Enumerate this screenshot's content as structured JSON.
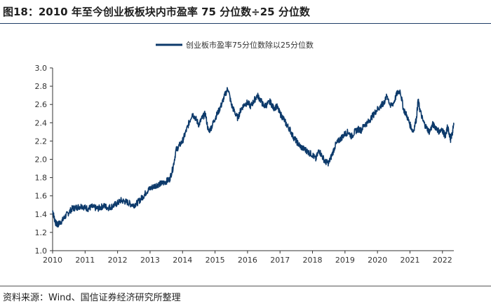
{
  "header": {
    "title": "图18：2010 年至今创业板板块内市盈率 75 分位数÷25 分位数"
  },
  "footer": {
    "source": "资料来源：Wind、国信证券经济研究所整理"
  },
  "chart_data": {
    "type": "line",
    "title": "图18：2010 年至今创业板板块内市盈率 75 分位数÷25 分位数",
    "xlabel": "",
    "ylabel": "",
    "x_range": [
      2010.0,
      2022.35
    ],
    "ylim": [
      1.0,
      3.0
    ],
    "y_ticks": [
      1.0,
      1.2,
      1.4,
      1.6,
      1.8,
      2.0,
      2.2,
      2.4,
      2.6,
      2.8,
      3.0
    ],
    "y_tick_labels": [
      "1.0",
      "1.2",
      "1.4",
      "1.6",
      "1.8",
      "2.0",
      "2.2",
      "2.4",
      "2.6",
      "2.8",
      "3.0"
    ],
    "x_ticks": [
      2010,
      2011,
      2012,
      2013,
      2014,
      2015,
      2016,
      2017,
      2018,
      2019,
      2020,
      2021,
      2022
    ],
    "x_tick_labels": [
      "2010",
      "2011",
      "2012",
      "2013",
      "2014",
      "2015",
      "2016",
      "2017",
      "2018",
      "2019",
      "2020",
      "2021",
      "2022"
    ],
    "grid": false,
    "legend": {
      "position": "top-center",
      "entries": [
        "创业板市盈率75分位数除以25分位数"
      ]
    },
    "colors": {
      "series": "#0d3a6b"
    },
    "series": [
      {
        "name": "创业板市盈率75分位数除以25分位数",
        "x": [
          2010.0,
          2010.05,
          2010.1,
          2010.15,
          2010.2,
          2010.3,
          2010.4,
          2010.5,
          2010.6,
          2010.7,
          2010.8,
          2010.9,
          2011.0,
          2011.1,
          2011.2,
          2011.3,
          2011.4,
          2011.5,
          2011.6,
          2011.7,
          2011.8,
          2011.9,
          2012.0,
          2012.1,
          2012.2,
          2012.3,
          2012.4,
          2012.5,
          2012.6,
          2012.7,
          2012.8,
          2012.9,
          2013.0,
          2013.1,
          2013.2,
          2013.3,
          2013.4,
          2013.5,
          2013.6,
          2013.7,
          2013.8,
          2013.9,
          2014.0,
          2014.1,
          2014.2,
          2014.3,
          2014.4,
          2014.5,
          2014.6,
          2014.7,
          2014.8,
          2014.9,
          2015.0,
          2015.1,
          2015.2,
          2015.3,
          2015.4,
          2015.5,
          2015.6,
          2015.7,
          2015.8,
          2015.9,
          2016.0,
          2016.1,
          2016.2,
          2016.3,
          2016.4,
          2016.5,
          2016.6,
          2016.7,
          2016.8,
          2016.9,
          2017.0,
          2017.1,
          2017.2,
          2017.3,
          2017.4,
          2017.5,
          2017.6,
          2017.7,
          2017.8,
          2017.9,
          2018.0,
          2018.1,
          2018.2,
          2018.3,
          2018.4,
          2018.5,
          2018.6,
          2018.7,
          2018.8,
          2018.9,
          2019.0,
          2019.1,
          2019.2,
          2019.3,
          2019.4,
          2019.5,
          2019.6,
          2019.7,
          2019.8,
          2019.9,
          2020.0,
          2020.1,
          2020.15,
          2020.2,
          2020.3,
          2020.4,
          2020.5,
          2020.6,
          2020.7,
          2020.8,
          2020.9,
          2021.0,
          2021.1,
          2021.2,
          2021.25,
          2021.3,
          2021.4,
          2021.5,
          2021.6,
          2021.7,
          2021.8,
          2021.9,
          2022.0,
          2022.05,
          2022.1,
          2022.15,
          2022.2,
          2022.25,
          2022.3,
          2022.35
        ],
        "values": [
          1.44,
          1.36,
          1.3,
          1.28,
          1.3,
          1.33,
          1.38,
          1.42,
          1.46,
          1.47,
          1.48,
          1.49,
          1.47,
          1.46,
          1.48,
          1.47,
          1.46,
          1.48,
          1.49,
          1.47,
          1.48,
          1.5,
          1.52,
          1.55,
          1.54,
          1.53,
          1.51,
          1.5,
          1.52,
          1.56,
          1.6,
          1.65,
          1.68,
          1.7,
          1.72,
          1.73,
          1.74,
          1.76,
          1.78,
          1.9,
          2.1,
          2.15,
          2.2,
          2.3,
          2.4,
          2.5,
          2.45,
          2.38,
          2.45,
          2.5,
          2.3,
          2.36,
          2.45,
          2.52,
          2.6,
          2.7,
          2.78,
          2.6,
          2.52,
          2.45,
          2.55,
          2.6,
          2.62,
          2.58,
          2.64,
          2.7,
          2.65,
          2.58,
          2.6,
          2.63,
          2.56,
          2.58,
          2.5,
          2.45,
          2.38,
          2.33,
          2.25,
          2.2,
          2.15,
          2.12,
          2.1,
          2.07,
          2.05,
          2.0,
          2.1,
          2.03,
          1.97,
          1.96,
          2.05,
          2.15,
          2.2,
          2.24,
          2.28,
          2.3,
          2.25,
          2.3,
          2.33,
          2.32,
          2.38,
          2.4,
          2.45,
          2.5,
          2.55,
          2.58,
          2.6,
          2.62,
          2.7,
          2.58,
          2.62,
          2.72,
          2.75,
          2.55,
          2.48,
          2.38,
          2.3,
          2.45,
          2.65,
          2.55,
          2.42,
          2.35,
          2.3,
          2.38,
          2.35,
          2.3,
          2.32,
          2.28,
          2.25,
          2.35,
          2.3,
          2.22,
          2.28,
          2.38
        ]
      }
    ]
  }
}
